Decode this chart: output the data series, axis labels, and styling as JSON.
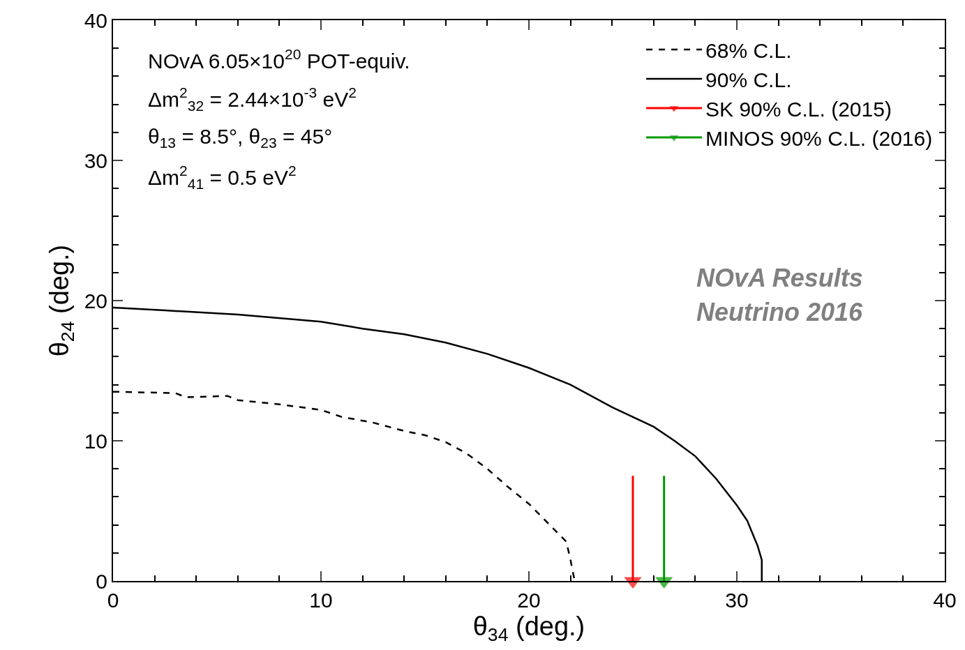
{
  "chart_data": {
    "type": "line",
    "xlabel": "θ$_{34}$ (deg.)",
    "ylabel": "θ$_{24}$ (deg.)",
    "xlim": [
      0,
      40
    ],
    "ylim": [
      0,
      40
    ],
    "xticks": [
      0,
      10,
      20,
      30,
      40
    ],
    "yticks": [
      0,
      10,
      20,
      30,
      40
    ],
    "legend": "top right",
    "series": [
      {
        "name": "68% C.L.",
        "color": "#000000",
        "line_style": "dashed",
        "x": [
          0,
          3,
          3.5,
          5.5,
          6,
          8,
          10,
          11,
          12.5,
          14,
          15,
          16,
          17,
          18,
          19,
          20,
          21,
          21.8,
          22,
          22.2
        ],
        "values": [
          13.5,
          13.4,
          13.1,
          13.2,
          12.9,
          12.6,
          12.2,
          11.7,
          11.3,
          10.7,
          10.4,
          9.9,
          9.1,
          8.0,
          6.7,
          5.5,
          4.0,
          2.8,
          1.5,
          0
        ]
      },
      {
        "name": "90% C.L.",
        "color": "#000000",
        "line_style": "solid",
        "x": [
          0,
          2.5,
          6,
          10,
          12,
          14,
          16,
          18,
          20,
          22,
          24,
          26,
          27,
          28,
          29,
          30,
          30.5,
          31,
          31.2,
          31.2
        ],
        "values": [
          19.5,
          19.3,
          19.0,
          18.5,
          18.0,
          17.6,
          17.0,
          16.2,
          15.2,
          14.0,
          12.4,
          11.0,
          10.0,
          8.9,
          7.3,
          5.4,
          4.3,
          2.5,
          1.5,
          0
        ]
      },
      {
        "name": "SK 90% C.L. (2015)",
        "color": "#ff0000",
        "line_style": "solid",
        "marker": "triangle",
        "x": [
          25,
          25
        ],
        "values": [
          7.5,
          0
        ]
      },
      {
        "name": "MINOS 90% C.L. (2016)",
        "color": "#009900",
        "line_style": "solid",
        "marker": "triangle",
        "x": [
          26.5,
          26.5
        ],
        "values": [
          7.5,
          0
        ]
      }
    ],
    "annotations": [
      "NOvA 6.05×10$^{20}$ POT-equiv.",
      "Δm$^{2}$$_{32}$ = 2.44×10$^{-3}$ eV$^{2}$",
      "θ$_{13}$ = 8.5°, θ$_{23}$ = 45°",
      "Δm$^{2}$$_{41}$ = 0.5 eV$^{2}$",
      "NOvA Results",
      "Neutrino 2016"
    ]
  }
}
